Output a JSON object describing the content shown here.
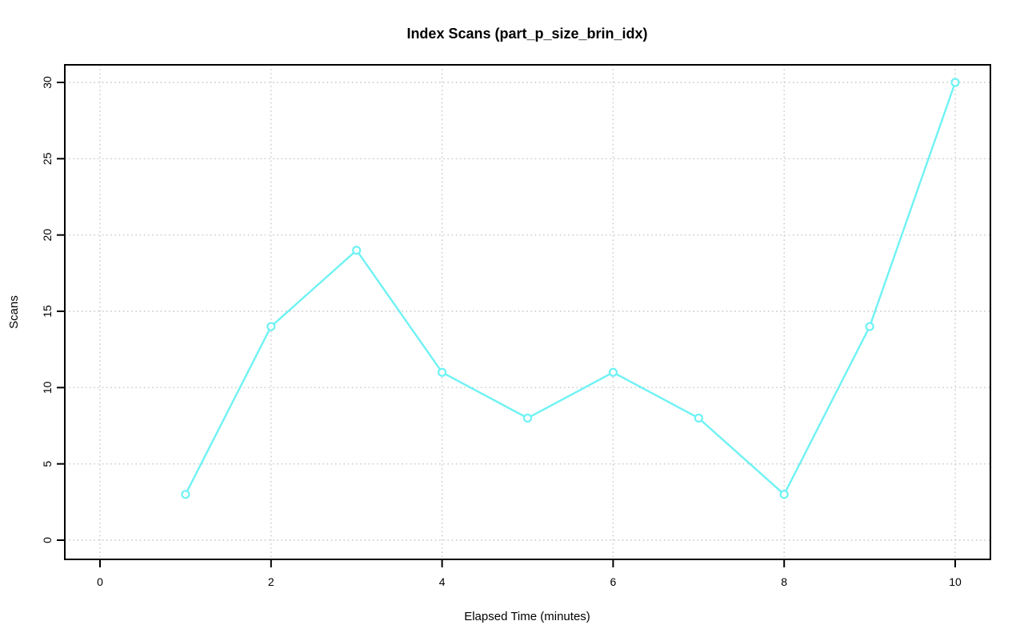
{
  "chart_data": {
    "type": "line",
    "title": "Index Scans (part_p_size_brin_idx)",
    "xlabel": "Elapsed Time (minutes)",
    "ylabel": "Scans",
    "x": [
      1,
      2,
      3,
      4,
      5,
      6,
      7,
      8,
      9,
      10
    ],
    "series": [
      {
        "name": "Scans",
        "values": [
          3,
          14,
          19,
          11,
          8,
          11,
          8,
          3,
          14,
          30
        ]
      }
    ],
    "x_ticks": [
      0,
      2,
      4,
      6,
      8,
      10
    ],
    "y_ticks": [
      0,
      5,
      10,
      15,
      20,
      25,
      30
    ],
    "xlim": [
      0,
      10
    ],
    "ylim": [
      0,
      30
    ],
    "grid": true,
    "grid_style": "dotted",
    "legend_position": "none",
    "marker": "open-circle",
    "colors": {
      "line": "#6FF2F4",
      "marker": "#6FF2F4",
      "grid": "#C9C9C9",
      "axis": "#000000",
      "text": "#000000",
      "background": "#FFFFFF"
    }
  }
}
